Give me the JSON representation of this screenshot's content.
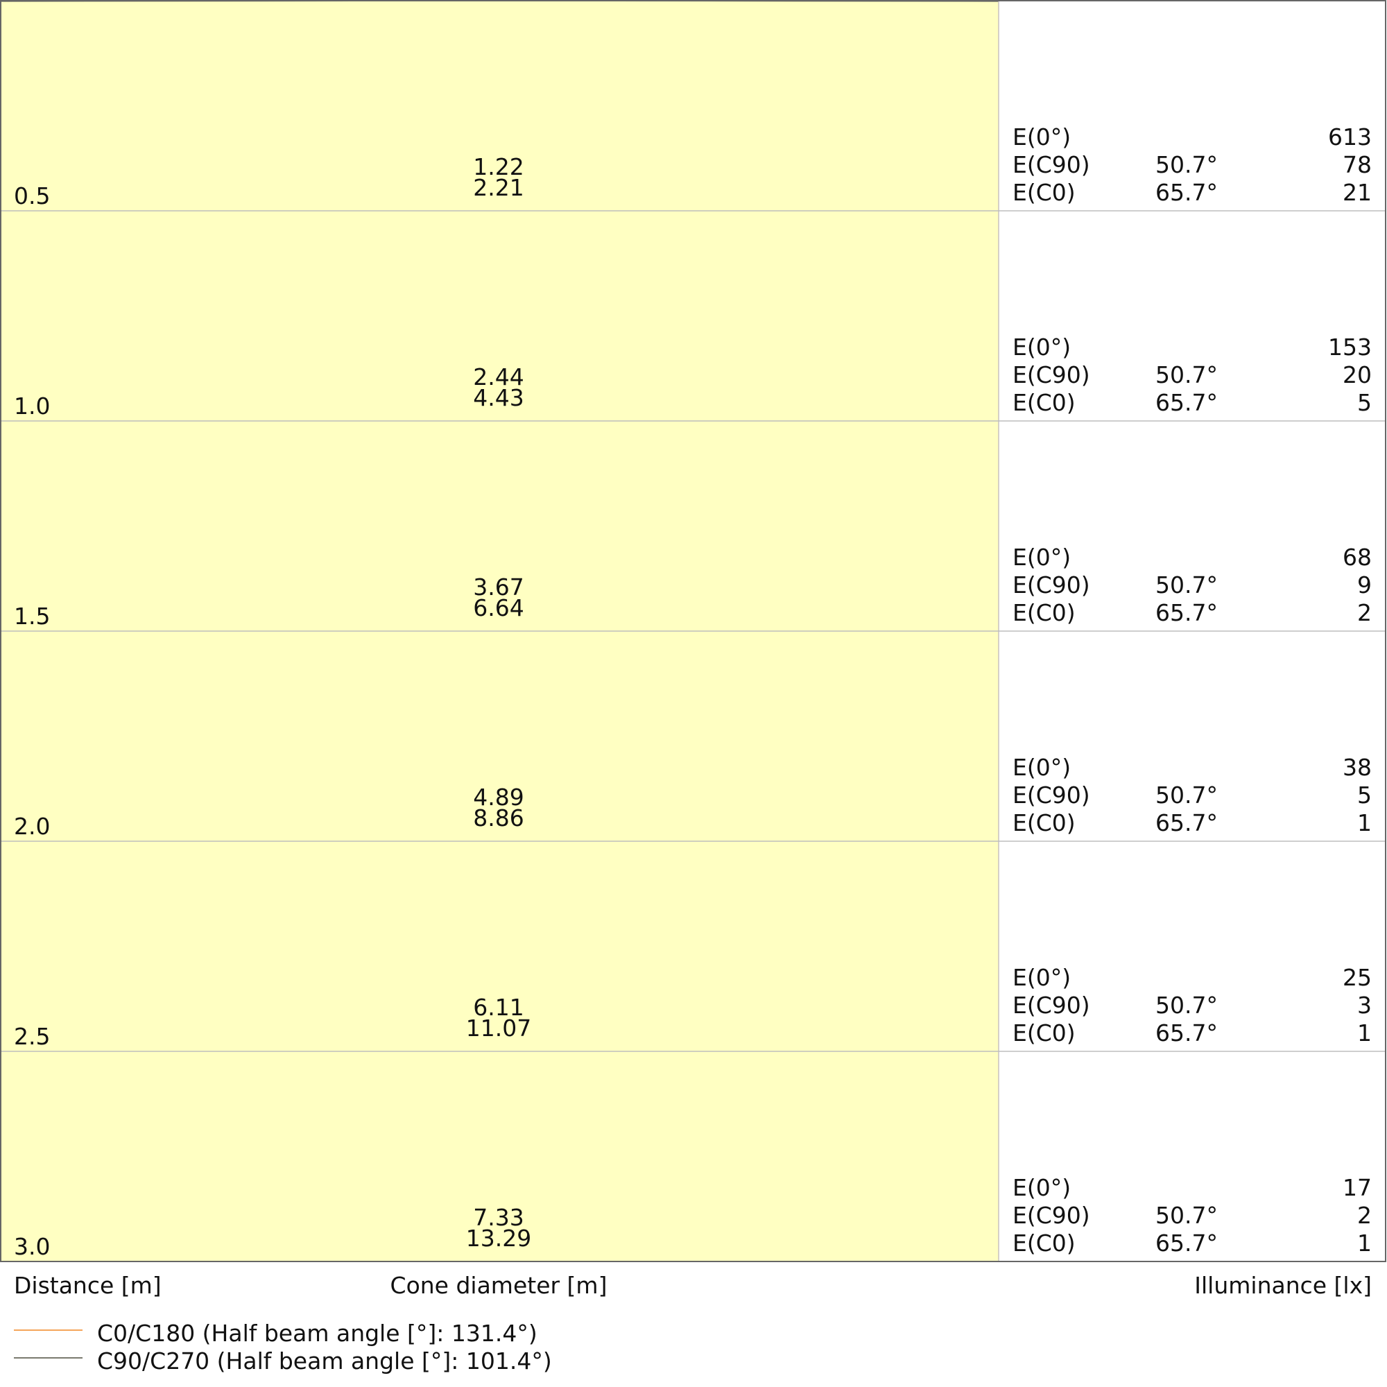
{
  "chart_data": {
    "type": "cone-diagram",
    "xlabel_distance": "Distance [m]",
    "xlabel_cone": "Cone diameter [m]",
    "xlabel_illuminance": "Illuminance [lx]",
    "ylim": [
      0,
      3.0
    ],
    "distances": [
      "0.5",
      "1.0",
      "1.5",
      "2.0",
      "2.5",
      "3.0"
    ],
    "cone_diameter_c90": [
      "1.22",
      "2.44",
      "3.67",
      "4.89",
      "6.11",
      "7.33"
    ],
    "cone_diameter_c0": [
      "2.21",
      "4.43",
      "6.64",
      "8.86",
      "11.07",
      "13.29"
    ],
    "illuminance_labels": [
      "E(0°)",
      "E(C90)",
      "E(C0)"
    ],
    "angle_c90": "50.7°",
    "angle_c0": "65.7°",
    "e0": [
      "613",
      "153",
      "68",
      "38",
      "25",
      "17"
    ],
    "e_c90": [
      "78",
      "20",
      "9",
      "5",
      "3",
      "2"
    ],
    "e_c0": [
      "21",
      "5",
      "2",
      "1",
      "1",
      "1"
    ],
    "series": [
      {
        "name": "C0/C180 (Half beam angle [°]: 131.4°)",
        "half_beam_angle": 131.4,
        "color": "#f5a55a"
      },
      {
        "name": "C90/C270 (Half beam angle [°]: 101.4°)",
        "half_beam_angle": 101.4,
        "color": "#7a7a6e"
      }
    ],
    "fill_colors": {
      "c0": "#fffbd9",
      "c90": "#ffffc2"
    }
  }
}
